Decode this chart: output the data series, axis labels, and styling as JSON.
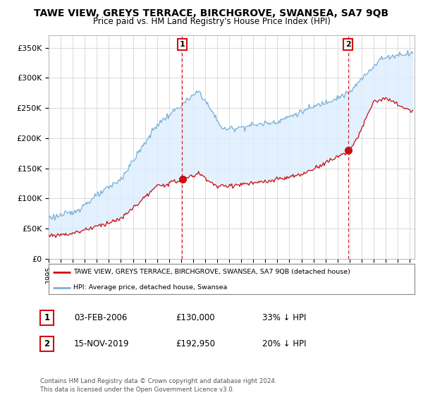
{
  "title": "TAWE VIEW, GREYS TERRACE, BIRCHGROVE, SWANSEA, SA7 9QB",
  "subtitle": "Price paid vs. HM Land Registry's House Price Index (HPI)",
  "ylabel_ticks": [
    "£0",
    "£50K",
    "£100K",
    "£150K",
    "£200K",
    "£250K",
    "£300K",
    "£350K"
  ],
  "ytick_values": [
    0,
    50000,
    100000,
    150000,
    200000,
    250000,
    300000,
    350000
  ],
  "ylim": [
    0,
    370000
  ],
  "xlim_start": 1995.0,
  "xlim_end": 2025.4,
  "hpi_color": "#7ab0d4",
  "hpi_fill_color": "#ddeeff",
  "price_color": "#cc1111",
  "sale1_date": 2006.08,
  "sale1_price": 130000,
  "sale1_label": "1",
  "sale2_date": 2019.87,
  "sale2_price": 192950,
  "sale2_label": "2",
  "legend_address": "TAWE VIEW, GREYS TERRACE, BIRCHGROVE, SWANSEA, SA7 9QB (detached house)",
  "legend_hpi": "HPI: Average price, detached house, Swansea",
  "note1_num": "1",
  "note1_date": "03-FEB-2006",
  "note1_price": "£130,000",
  "note1_pct": "33% ↓ HPI",
  "note2_num": "2",
  "note2_date": "15-NOV-2019",
  "note2_price": "£192,950",
  "note2_pct": "20% ↓ HPI",
  "footer": "Contains HM Land Registry data © Crown copyright and database right 2024.\nThis data is licensed under the Open Government Licence v3.0.",
  "background_color": "#ffffff"
}
